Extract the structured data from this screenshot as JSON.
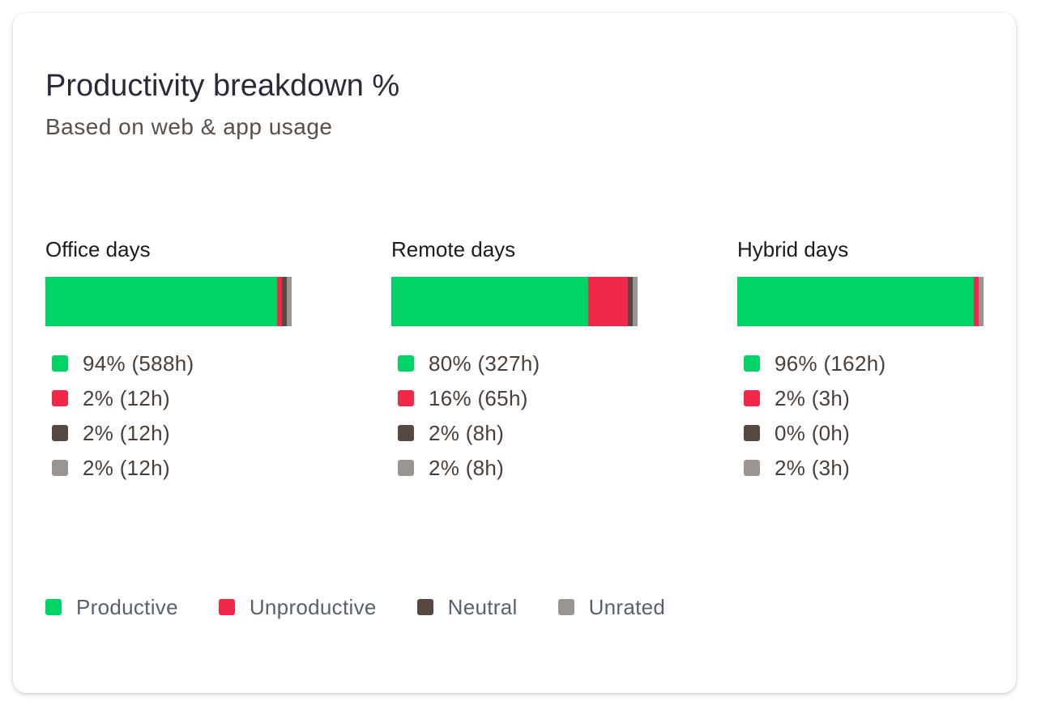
{
  "header": {
    "title": "Productivity breakdown %",
    "subtitle": "Based on web & app usage"
  },
  "colors": {
    "productive": "#00d464",
    "unproductive": "#f2284a",
    "neutral": "#574842",
    "unrated": "#9b9591"
  },
  "legend": [
    {
      "key": "productive",
      "label": "Productive"
    },
    {
      "key": "unproductive",
      "label": "Unproductive"
    },
    {
      "key": "neutral",
      "label": "Neutral"
    },
    {
      "key": "unrated",
      "label": "Unrated"
    }
  ],
  "chart_data": {
    "type": "bar",
    "orientation": "horizontal-stacked",
    "title": "Productivity breakdown %",
    "subtitle": "Based on web & app usage",
    "categories": [
      "Office days",
      "Remote days",
      "Hybrid days"
    ],
    "series": [
      {
        "name": "Productive",
        "values": [
          94,
          80,
          96
        ],
        "labels": [
          "94% (588h)",
          "80% (327h)",
          "96% (162h)"
        ]
      },
      {
        "name": "Unproductive",
        "values": [
          2,
          16,
          2
        ],
        "labels": [
          "2% (12h)",
          "16% (65h)",
          "2% (3h)"
        ]
      },
      {
        "name": "Neutral",
        "values": [
          2,
          2,
          0
        ],
        "labels": [
          "2% (12h)",
          "2% (8h)",
          "0% (0h)"
        ]
      },
      {
        "name": "Unrated",
        "values": [
          2,
          2,
          2
        ],
        "labels": [
          "2% (12h)",
          "2% (8h)",
          "2% (3h)"
        ]
      }
    ],
    "legend_position": "bottom-left",
    "grid": false
  }
}
